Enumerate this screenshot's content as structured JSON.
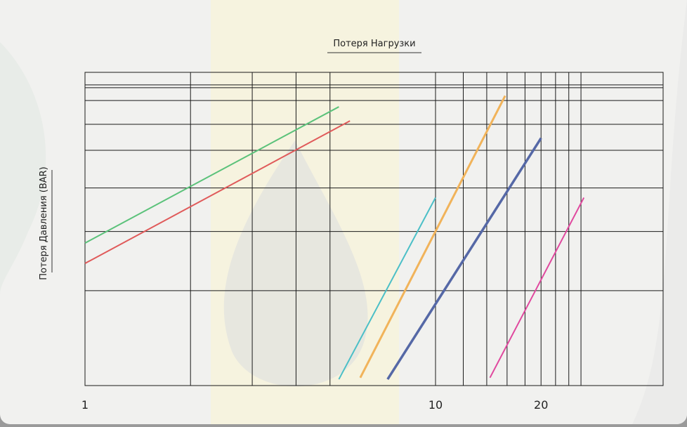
{
  "chart_data": {
    "type": "line",
    "title": "Потеря Нагрузки",
    "ylabel": "Потеря Давления (BAR)",
    "xlabel": "",
    "x_scale": "log",
    "y_scale": "log",
    "grid": true,
    "legend": "none",
    "xlim": [
      1,
      30
    ],
    "x_ticks": [
      1,
      10,
      20
    ],
    "x_tick_labels": [
      "1",
      "10",
      "20"
    ],
    "series": [
      {
        "color": "#5bc27a",
        "stroke": 2,
        "x": [
          1.0,
          5.3
        ],
        "y_fraction": [
          0.455,
          0.89
        ]
      },
      {
        "color": "#e05a5a",
        "stroke": 2,
        "x": [
          1.0,
          5.7
        ],
        "y_fraction": [
          0.39,
          0.845
        ]
      },
      {
        "color": "#4bbfc7",
        "stroke": 2,
        "x": [
          5.3,
          10.0
        ],
        "y_fraction": [
          0.02,
          0.6
        ]
      },
      {
        "color": "#f1b35a",
        "stroke": 3,
        "x": [
          6.1,
          15.8
        ],
        "y_fraction": [
          0.025,
          0.925
        ]
      },
      {
        "color": "#5568a6",
        "stroke": 3.5,
        "x": [
          7.3,
          20.0
        ],
        "y_fraction": [
          0.02,
          0.79
        ]
      },
      {
        "color": "#e0489e",
        "stroke": 2,
        "x": [
          14.3,
          26.5
        ],
        "y_fraction": [
          0.025,
          0.6
        ]
      }
    ]
  }
}
